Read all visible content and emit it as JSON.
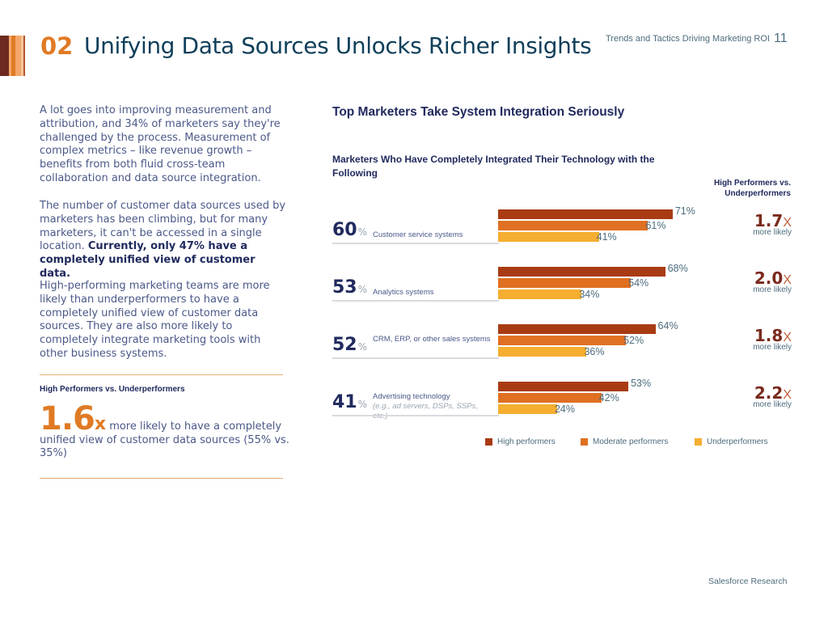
{
  "header": {
    "section_number": "02",
    "title": "Unifying Data Sources Unlocks Richer Insights",
    "running_head": "Trends and Tactics Driving Marketing ROI",
    "page_number": "11",
    "stripe_colors": [
      "#6e2a1f",
      "#6e2a1f",
      "#f4a76a",
      "#e07a24",
      "#f4a76a",
      "#f9c79d",
      "#b8532b"
    ]
  },
  "body": {
    "p1": "A lot goes into improving measurement and attribution, and 34% of marketers say they're challenged by the process. Measurement of complex metrics – like revenue growth – benefits from both fluid cross-team collaboration and data source integration.",
    "p2_plain": "The number of customer data sources used by marketers has been climbing, but for many marketers, it can't be accessed in a single location. ",
    "p2_bold": "Currently, only 47% have a completely unified view of customer data.",
    "p3": "High-performing marketing teams are more likely than underperformers to have a completely unified view of customer data sources. They are also more likely to completely integrate marketing tools with other business systems."
  },
  "callout": {
    "heading": "High Performers vs. Underperformers",
    "big_number": "1.6",
    "big_suffix": "x",
    "text": " more likely to have a completely unified view of customer data sources (55% vs. 35%)"
  },
  "chart_data": {
    "type": "bar",
    "orientation": "horizontal",
    "title": "Top Marketers Take System Integration Seriously",
    "subtitle": "Marketers Who Have Completely Integrated Their Technology with the Following",
    "multiplier_heading": "High Performers vs. Underperformers",
    "categories": [
      {
        "label": "Customer service systems",
        "note": "",
        "overall": 60,
        "multiplier": "1.7",
        "multiplier_label": "more likely"
      },
      {
        "label": "Analytics systems",
        "note": "",
        "overall": 53,
        "multiplier": "2.0",
        "multiplier_label": "more likely"
      },
      {
        "label": "CRM, ERP, or other sales systems",
        "note": "",
        "overall": 52,
        "multiplier": "1.8",
        "multiplier_label": "more likely"
      },
      {
        "label": "Advertising technology",
        "note": "(e.g., ad servers, DSPs, SSPs, etc.)",
        "overall": 41,
        "multiplier": "2.2",
        "multiplier_label": "more likely"
      }
    ],
    "series": [
      {
        "name": "High performers",
        "color": "#a93b13",
        "values": [
          71,
          68,
          64,
          53
        ]
      },
      {
        "name": "Moderate performers",
        "color": "#e07022",
        "values": [
          61,
          54,
          52,
          42
        ]
      },
      {
        "name": "Underperformers",
        "color": "#f5ae30",
        "values": [
          41,
          34,
          36,
          24
        ]
      }
    ],
    "unit": "%",
    "multiplier_suffix": "X",
    "xlim": [
      0,
      100
    ],
    "legend": "bottom",
    "grid": false
  },
  "footer": {
    "text": "Salesforce Research"
  }
}
